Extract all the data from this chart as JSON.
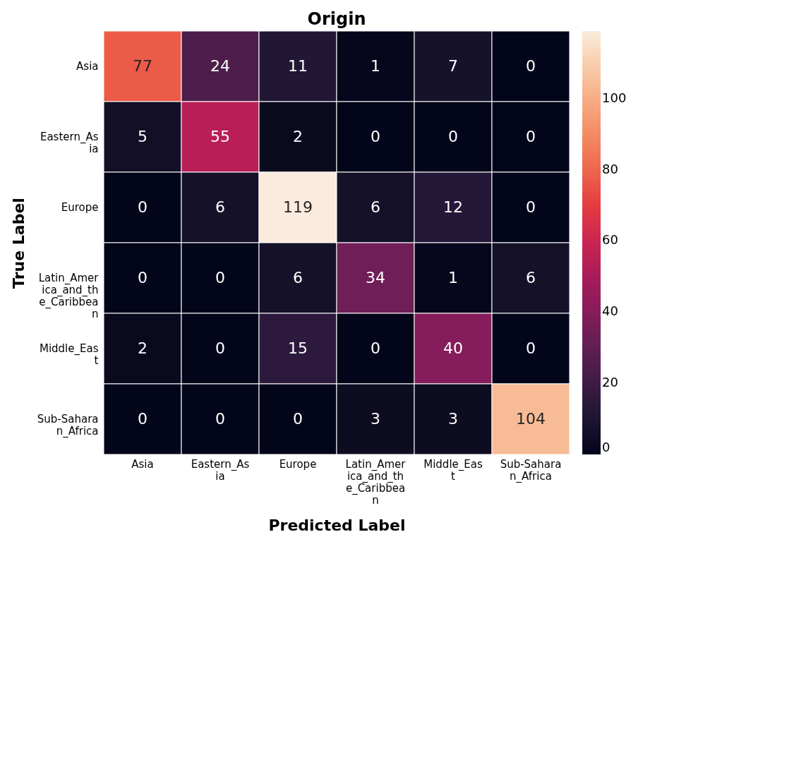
{
  "chart_data": {
    "type": "heatmap",
    "title": "Origin",
    "xlabel": "Predicted Label",
    "ylabel": "True Label",
    "categories": [
      "Asia",
      "Eastern_As\nia",
      "Europe",
      "Latin_Amer\nica_and_th\ne_Caribbea\nn",
      "Middle_Eas\nt",
      "Sub-Sahara\nn_Africa"
    ],
    "y_categories": [
      "Asia",
      "Eastern_As\nia",
      "Europe",
      "Latin_Amer\nica_and_th\ne_Caribbea\nn",
      "Middle_Eas\nt",
      "Sub-Sahara\nn_Africa"
    ],
    "cells": [
      [
        77,
        24,
        11,
        1,
        7,
        0
      ],
      [
        5,
        55,
        2,
        0,
        0,
        0
      ],
      [
        0,
        6,
        119,
        6,
        12,
        0
      ],
      [
        0,
        0,
        6,
        34,
        1,
        6
      ],
      [
        2,
        0,
        15,
        0,
        40,
        0
      ],
      [
        0,
        0,
        0,
        3,
        3,
        104
      ]
    ],
    "clim": [
      0,
      119
    ],
    "cticks": [
      0,
      20,
      40,
      60,
      80,
      100
    ],
    "data_labels": true
  }
}
